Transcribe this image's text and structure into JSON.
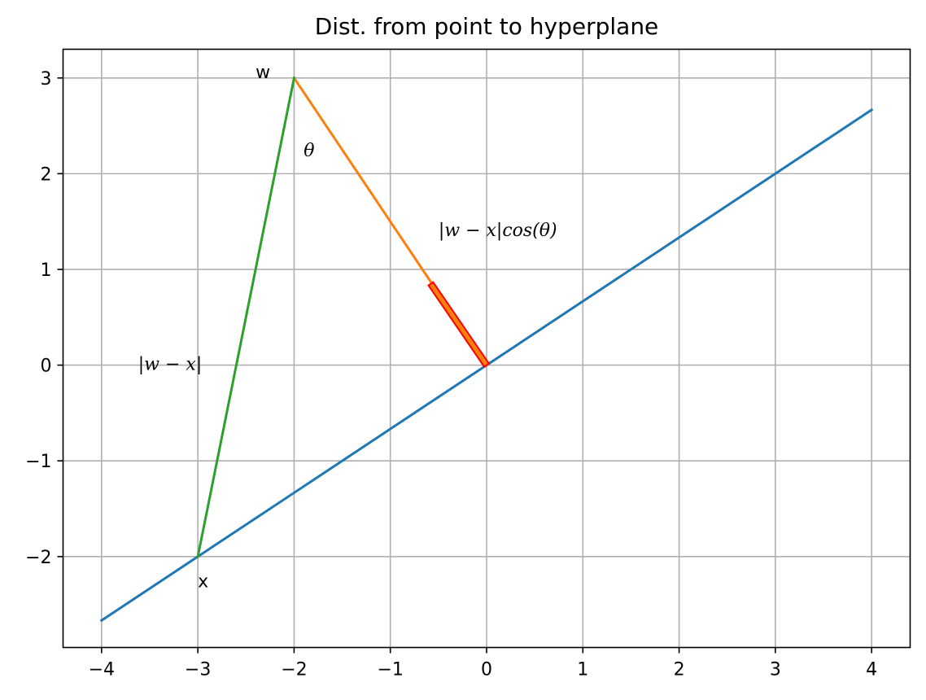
{
  "chart_data": {
    "type": "line",
    "title": "Dist. from point to hyperplane",
    "xlabel": "",
    "ylabel": "",
    "xlim": [
      -4.4,
      4.4
    ],
    "ylim": [
      -2.95,
      3.3
    ],
    "xticks": [
      -4,
      -3,
      -2,
      -1,
      0,
      1,
      2,
      3,
      4
    ],
    "yticks": [
      -2,
      -1,
      0,
      1,
      2,
      3
    ],
    "xtick_labels": [
      "−4",
      "−3",
      "−2",
      "−1",
      "0",
      "1",
      "2",
      "3",
      "4"
    ],
    "ytick_labels": [
      "−2",
      "−1",
      "0",
      "1",
      "2",
      "3"
    ],
    "grid": true,
    "legend": "none",
    "series": [
      {
        "color": "#1f77b4",
        "x": [
          -4,
          4
        ],
        "y": [
          -2.667,
          2.667
        ]
      },
      {
        "color": "#ff7f0e",
        "x": [
          -2,
          0
        ],
        "y": [
          3,
          0
        ]
      },
      {
        "color": "#2ca02c",
        "x": [
          -3,
          -2
        ],
        "y": [
          -2,
          3
        ]
      }
    ],
    "highlight_segment": {
      "color": "#ff0000",
      "fill": "#ff7f0e",
      "x": [
        -0.58,
        0
      ],
      "y": [
        0.85,
        0
      ]
    },
    "annotations": [
      {
        "text": "w",
        "x": -2.4,
        "y": 3.0,
        "style": "plain"
      },
      {
        "text": "x",
        "x": -3.0,
        "y": -2.32,
        "style": "plain"
      },
      {
        "text": "θ",
        "x": -1.9,
        "y": 2.18,
        "style": "italic"
      },
      {
        "text": "|w − x|",
        "x": -3.62,
        "y": -0.05,
        "style": "math"
      },
      {
        "text": "|w − x|cos(θ)",
        "x": -0.5,
        "y": 1.35,
        "style": "math"
      }
    ]
  }
}
